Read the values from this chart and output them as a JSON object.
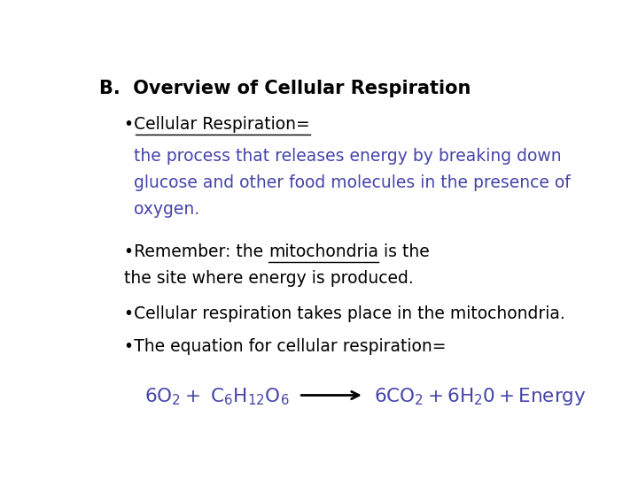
{
  "bg_color": "#ffffff",
  "title_text": "B.  Overview of Cellular Respiration",
  "title_color": "#000000",
  "title_fontsize": 15,
  "bullet1_label": "•Cellular Respiration=",
  "bullet1_color": "#000000",
  "bullet1_fontsize": 13.5,
  "bullet1_body_color": "#4444aa",
  "bullet1_body_line1": "the process that releases energy by breaking down",
  "bullet1_body_line2": "glucose and other food molecules in the presence of",
  "bullet1_body_line3": "oxygen.",
  "bullet1_body_fontsize": 13.5,
  "bullet2_prefix": "•Remember: the ",
  "bullet2_underlined": "mitochondria",
  "bullet2_suffix": " is the",
  "bullet2_line2": "the site where energy is produced.",
  "bullet2_color": "#000000",
  "bullet2_fontsize": 13.5,
  "bullet3": "•Cellular respiration takes place in the mitochondria.",
  "bullet3_color": "#000000",
  "bullet3_fontsize": 13.5,
  "bullet4": "•The equation for cellular respiration=",
  "bullet4_color": "#000000",
  "bullet4_fontsize": 13.5,
  "equation_color": "#4444aa",
  "equation_fontsize": 15.5,
  "arrow_color": "#000000"
}
